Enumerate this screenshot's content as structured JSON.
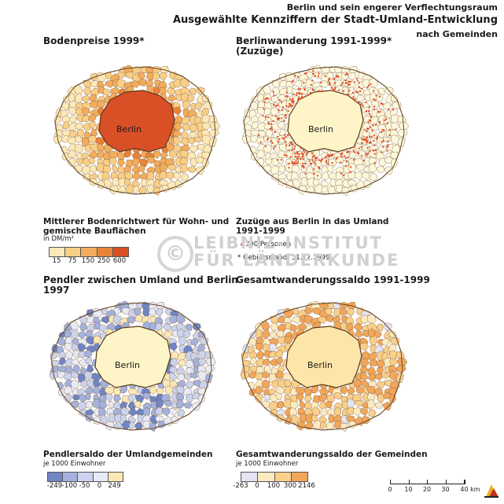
{
  "header": {
    "line1": "Berlin und sein engerer Verflechtungsraum",
    "line2": "Ausgewählte Kennziffern der Stadt-Umland-Entwicklung",
    "line3": "nach Gemeinden"
  },
  "city_label": "Berlin",
  "colors": {
    "boundary": "#7a5a3a",
    "dot": "#e0502a"
  },
  "panels": {
    "bodenpreise": {
      "title": "Bodenpreise 1999*",
      "legend_title_1": "Mittlerer Bodenrichtwert für Wohn- und",
      "legend_title_2": "gemischte Bauflächen",
      "unit": "in DM/m²",
      "classes": [
        "15",
        "75",
        "150",
        "250",
        "600"
      ],
      "colors": [
        "#fde9b8",
        "#f9cf88",
        "#f2ac5c",
        "#e8833a",
        "#d94f26"
      ],
      "berlin_color": "#d94f26"
    },
    "berlinwanderung": {
      "title_1": "Berlinwanderung 1991-1999*",
      "title_2": "(Zuzüge)",
      "legend_title_1": "Zuzüge aus Berlin in das Umland",
      "legend_title_2": "1991-1999",
      "dot_label": "300 Personen",
      "footnote": "* Gebietsstand: 31.12.1999",
      "fill": "#fdf8dc",
      "berlin_color": "#fdf4c8"
    },
    "pendler": {
      "title_1": "Pendler zwischen Umland und Berlin",
      "title_2": "1997",
      "legend_title": "Pendlersaldo der Umlandgemeinden",
      "unit": "je 1000 Einwohner",
      "classes": [
        "-249",
        "-100",
        "-50",
        "0",
        "249"
      ],
      "colors": [
        "#6f85c4",
        "#a3b1dc",
        "#ccd3ec",
        "#e8ebf6",
        "#fbe8b4"
      ],
      "berlin_color": "#fdf4c8"
    },
    "gesamt": {
      "title": "Gesamtwanderungssaldo 1991-1999",
      "legend_title": "Gesamtwanderungssaldo der Gemeinden",
      "unit": "je 1000 Einwohner",
      "classes": [
        "-263",
        "0",
        "100",
        "300",
        "2146"
      ],
      "colors": [
        "#e4e4f2",
        "#fdebc0",
        "#f9cf8a",
        "#f1a65a"
      ],
      "berlin_color": "#fde4a8"
    }
  },
  "watermark": {
    "symbol": "©",
    "line1": "LEIBNIZ-INSTITUT",
    "line2": "FÜR LÄNDERKUNDE"
  },
  "scale_bar": {
    "labels": [
      "0",
      "10",
      "20",
      "30",
      "40 km"
    ]
  }
}
